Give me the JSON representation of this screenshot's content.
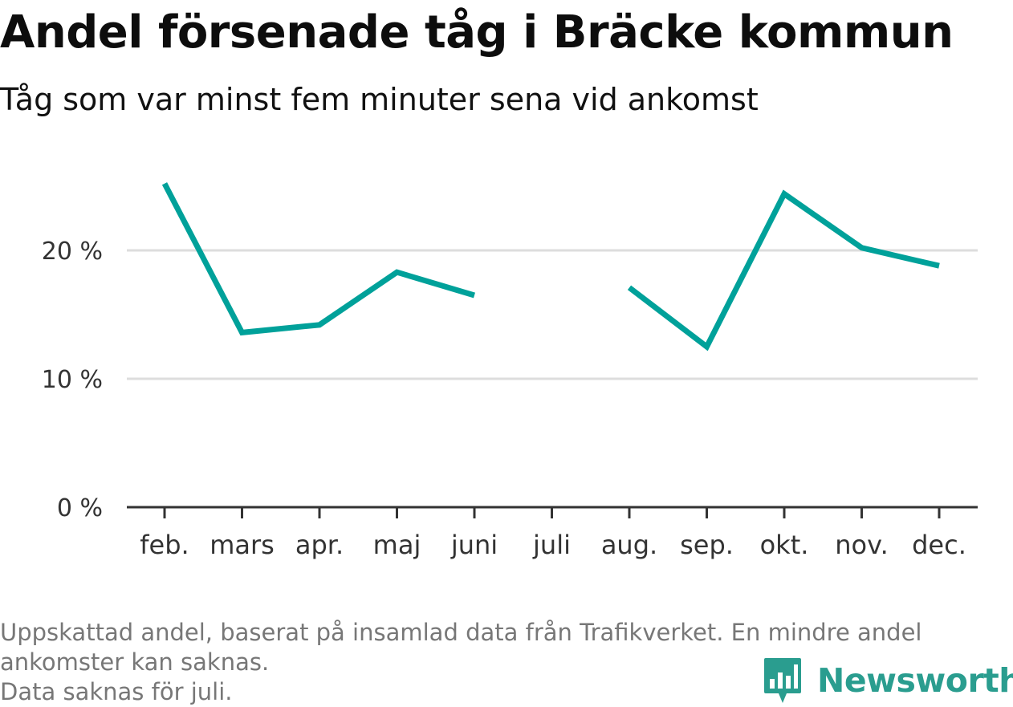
{
  "chart_data": {
    "type": "line",
    "title": "Andel försenade tåg i Bräcke kommun",
    "subtitle": "Tåg som var minst fem minuter sena vid ankomst",
    "categories": [
      "feb.",
      "mars",
      "apr.",
      "maj",
      "juni",
      "juli",
      "aug.",
      "sep.",
      "okt.",
      "nov.",
      "dec."
    ],
    "series": [
      {
        "values": [
          25.2,
          13.6,
          14.2,
          18.3,
          16.5,
          null,
          17.1,
          12.5,
          24.4,
          20.2,
          18.8
        ],
        "color": "#00a19a"
      }
    ],
    "y_ticks": [
      {
        "value": 0,
        "label": "0 %"
      },
      {
        "value": 10,
        "label": "10 %"
      },
      {
        "value": 20,
        "label": "20 %"
      }
    ],
    "ylim": [
      0,
      27
    ],
    "grid": true,
    "gridline_color": "#dddddd",
    "axis_color": "#333333"
  },
  "footer": {
    "lines": [
      "Uppskattad andel, baserat på insamlad data från Trafikverket. En mindre andel",
      "ankomster kan saknas.",
      "Data saknas för juli."
    ]
  },
  "logo": {
    "name": "Newsworthy",
    "icon": "newsworthy-logo-icon",
    "color": "#2a9d8f"
  }
}
